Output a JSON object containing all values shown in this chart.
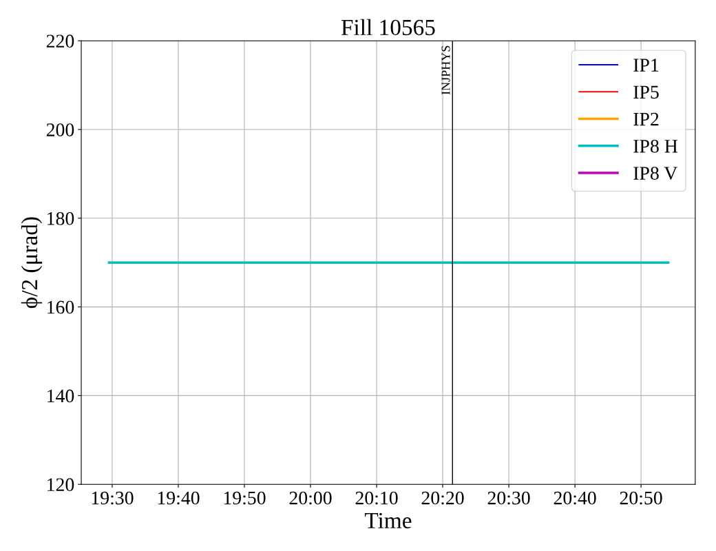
{
  "chart_data": {
    "type": "line",
    "title": "Fill 10565",
    "xlabel": "Time",
    "ylabel": "ϕ/2 (μrad)",
    "x": [
      19.492,
      20.902
    ],
    "series": [
      {
        "name": "IP1",
        "color": "#0000ff",
        "values": [
          null,
          null
        ]
      },
      {
        "name": "IP5",
        "color": "#ff0000",
        "values": [
          null,
          null
        ]
      },
      {
        "name": "IP2",
        "color": "#ffa500",
        "values": [
          null,
          null
        ]
      },
      {
        "name": "IP8 H",
        "color": "#00bfbf",
        "values": [
          170,
          170
        ]
      },
      {
        "name": "IP8 V",
        "color": "#bf00bf",
        "values": [
          null,
          null
        ]
      }
    ],
    "xlim": [
      19.422,
      20.97
    ],
    "xticks": [
      {
        "value": 19.5,
        "label": "19:30"
      },
      {
        "value": 19.6667,
        "label": "19:40"
      },
      {
        "value": 19.8333,
        "label": "19:50"
      },
      {
        "value": 20.0,
        "label": "20:00"
      },
      {
        "value": 20.1667,
        "label": "20:10"
      },
      {
        "value": 20.3333,
        "label": "20:20"
      },
      {
        "value": 20.5,
        "label": "20:30"
      },
      {
        "value": 20.6667,
        "label": "20:40"
      },
      {
        "value": 20.8333,
        "label": "20:50"
      }
    ],
    "ylim": [
      120,
      220
    ],
    "yticks": [
      120,
      140,
      160,
      180,
      200,
      220
    ],
    "ref_lines": [
      {
        "axis": "x",
        "value": 20.358,
        "label": "INJPHYS",
        "color": "#000000"
      }
    ],
    "grid": true,
    "legend": "top right",
    "marker": "none",
    "line_style": "solid"
  }
}
